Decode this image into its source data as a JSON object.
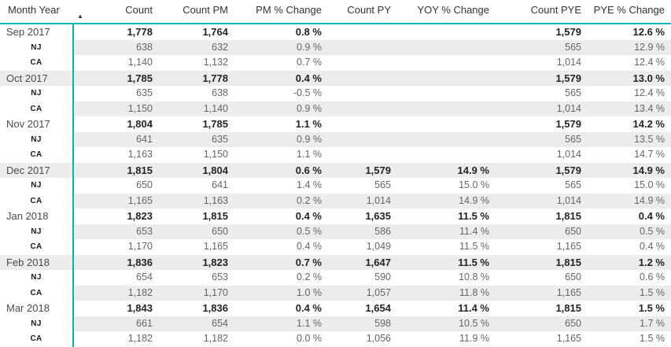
{
  "header": {
    "columns": [
      "Month Year",
      "Count",
      "Count PM",
      "PM % Change",
      "Count PY",
      "YOY % Change",
      "Count PYE",
      "PYE % Change"
    ],
    "sort": {
      "column": "Month Year",
      "direction": "ascending",
      "icon": "▲"
    }
  },
  "colors": {
    "accent": "#01B8AA",
    "band": "#ECECEC"
  },
  "rows": [
    {
      "type": "month",
      "label": "Sep 2017",
      "banded": false,
      "values": [
        "1,778",
        "1,764",
        "0.8 %",
        "",
        "",
        "1,579",
        "12.6 %"
      ]
    },
    {
      "type": "state",
      "label": "NJ",
      "banded": true,
      "values": [
        "638",
        "632",
        "0.9 %",
        "",
        "",
        "565",
        "12.9 %"
      ]
    },
    {
      "type": "state",
      "label": "CA",
      "banded": false,
      "values": [
        "1,140",
        "1,132",
        "0.7 %",
        "",
        "",
        "1,014",
        "12.4 %"
      ]
    },
    {
      "type": "month",
      "label": "Oct 2017",
      "banded": true,
      "values": [
        "1,785",
        "1,778",
        "0.4 %",
        "",
        "",
        "1,579",
        "13.0 %"
      ]
    },
    {
      "type": "state",
      "label": "NJ",
      "banded": false,
      "values": [
        "635",
        "638",
        "-0.5 %",
        "",
        "",
        "565",
        "12.4 %"
      ]
    },
    {
      "type": "state",
      "label": "CA",
      "banded": true,
      "values": [
        "1,150",
        "1,140",
        "0.9 %",
        "",
        "",
        "1,014",
        "13.4 %"
      ]
    },
    {
      "type": "month",
      "label": "Nov 2017",
      "banded": false,
      "values": [
        "1,804",
        "1,785",
        "1.1 %",
        "",
        "",
        "1,579",
        "14.2 %"
      ]
    },
    {
      "type": "state",
      "label": "NJ",
      "banded": true,
      "values": [
        "641",
        "635",
        "0.9 %",
        "",
        "",
        "565",
        "13.5 %"
      ]
    },
    {
      "type": "state",
      "label": "CA",
      "banded": false,
      "values": [
        "1,163",
        "1,150",
        "1.1 %",
        "",
        "",
        "1,014",
        "14.7 %"
      ]
    },
    {
      "type": "month",
      "label": "Dec 2017",
      "banded": true,
      "values": [
        "1,815",
        "1,804",
        "0.6 %",
        "1,579",
        "14.9 %",
        "1,579",
        "14.9 %"
      ]
    },
    {
      "type": "state",
      "label": "NJ",
      "banded": false,
      "values": [
        "650",
        "641",
        "1.4 %",
        "565",
        "15.0 %",
        "565",
        "15.0 %"
      ]
    },
    {
      "type": "state",
      "label": "CA",
      "banded": true,
      "values": [
        "1,165",
        "1,163",
        "0.2 %",
        "1,014",
        "14.9 %",
        "1,014",
        "14.9 %"
      ]
    },
    {
      "type": "month",
      "label": "Jan 2018",
      "banded": false,
      "values": [
        "1,823",
        "1,815",
        "0.4 %",
        "1,635",
        "11.5 %",
        "1,815",
        "0.4 %"
      ]
    },
    {
      "type": "state",
      "label": "NJ",
      "banded": true,
      "values": [
        "653",
        "650",
        "0.5 %",
        "586",
        "11.4 %",
        "650",
        "0.5 %"
      ]
    },
    {
      "type": "state",
      "label": "CA",
      "banded": false,
      "values": [
        "1,170",
        "1,165",
        "0.4 %",
        "1,049",
        "11.5 %",
        "1,165",
        "0.4 %"
      ]
    },
    {
      "type": "month",
      "label": "Feb 2018",
      "banded": true,
      "values": [
        "1,836",
        "1,823",
        "0.7 %",
        "1,647",
        "11.5 %",
        "1,815",
        "1.2 %"
      ]
    },
    {
      "type": "state",
      "label": "NJ",
      "banded": false,
      "values": [
        "654",
        "653",
        "0.2 %",
        "590",
        "10.8 %",
        "650",
        "0.6 %"
      ]
    },
    {
      "type": "state",
      "label": "CA",
      "banded": true,
      "values": [
        "1,182",
        "1,170",
        "1.0 %",
        "1,057",
        "11.8 %",
        "1,165",
        "1.5 %"
      ]
    },
    {
      "type": "month",
      "label": "Mar 2018",
      "banded": false,
      "values": [
        "1,843",
        "1,836",
        "0.4 %",
        "1,654",
        "11.4 %",
        "1,815",
        "1.5 %"
      ]
    },
    {
      "type": "state",
      "label": "NJ",
      "banded": true,
      "values": [
        "661",
        "654",
        "1.1 %",
        "598",
        "10.5 %",
        "650",
        "1.7 %"
      ]
    },
    {
      "type": "state",
      "label": "CA",
      "banded": false,
      "values": [
        "1,182",
        "1,182",
        "0.0 %",
        "1,056",
        "11.9 %",
        "1,165",
        "1.5 %"
      ]
    }
  ]
}
